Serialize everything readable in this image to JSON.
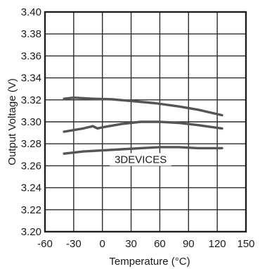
{
  "chart_data": {
    "type": "line",
    "xlabel": "Temperature (°C)",
    "ylabel": "Output Voltage (V)",
    "xlim": [
      -60,
      150
    ],
    "ylim": [
      3.2,
      3.4
    ],
    "x_ticks": [
      -60,
      -30,
      0,
      30,
      60,
      90,
      120,
      150
    ],
    "x_tick_labels": [
      "-60",
      "-30",
      "0",
      "30",
      "60",
      "90",
      "120",
      "150"
    ],
    "y_ticks": [
      3.2,
      3.22,
      3.24,
      3.26,
      3.28,
      3.3,
      3.32,
      3.34,
      3.36,
      3.38,
      3.4
    ],
    "y_tick_labels": [
      "3.20",
      "3.22",
      "3.24",
      "3.26",
      "3.28",
      "3.30",
      "3.32",
      "3.34",
      "3.36",
      "3.38",
      "3.40"
    ],
    "grid": true,
    "annotation": "3DEVICES",
    "series": [
      {
        "x": [
          -40,
          -30,
          -10,
          10,
          30,
          55,
          80,
          100,
          125
        ],
        "y": [
          3.321,
          3.322,
          3.321,
          3.3205,
          3.319,
          3.317,
          3.314,
          3.311,
          3.306
        ]
      },
      {
        "x": [
          -40,
          -20,
          -10,
          -5,
          0,
          20,
          40,
          60,
          80,
          100,
          125
        ],
        "y": [
          3.291,
          3.294,
          3.296,
          3.294,
          3.295,
          3.298,
          3.3,
          3.3,
          3.299,
          3.297,
          3.294
        ]
      },
      {
        "x": [
          -40,
          -20,
          0,
          20,
          40,
          60,
          80,
          100,
          125
        ],
        "y": [
          3.271,
          3.273,
          3.274,
          3.275,
          3.276,
          3.277,
          3.277,
          3.276,
          3.276
        ]
      }
    ]
  }
}
